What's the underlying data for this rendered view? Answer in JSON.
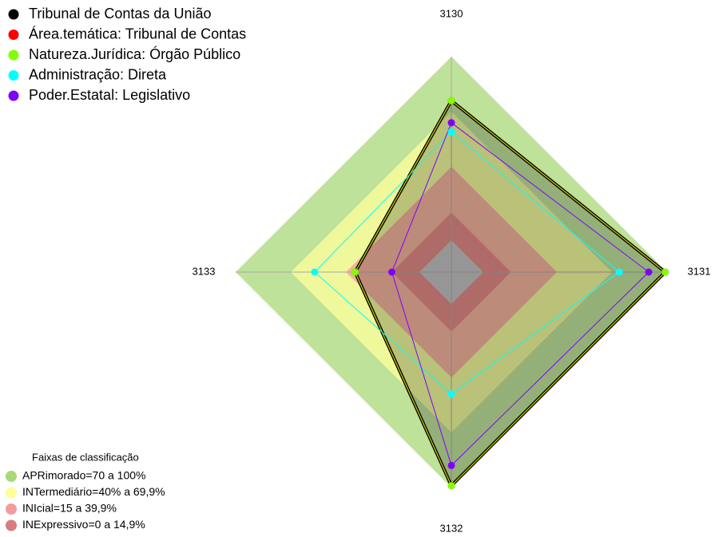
{
  "chart_data": {
    "type": "radar",
    "axes": [
      "3130",
      "3131",
      "3132",
      "3133"
    ],
    "rlim": [
      0,
      100
    ],
    "series": [
      {
        "name": "Tribunal de Contas da União",
        "color": "#000000",
        "values": [
          76,
          99,
          99,
          35
        ]
      },
      {
        "name": "Área.temática: Tribunal de Contas",
        "color": "#ff0000",
        "values": [
          76,
          99,
          99,
          35
        ]
      },
      {
        "name": "Natureza.Jurídica: Órgão Público",
        "color": "#80ff00",
        "values": [
          76,
          99,
          99,
          35
        ]
      },
      {
        "name": "Administração: Direta",
        "color": "#00ffff",
        "values": [
          59,
          74,
          49,
          57
        ]
      },
      {
        "name": "Poder.Estatal: Legislativo",
        "color": "#8000ff",
        "values": [
          64,
          90,
          88,
          15
        ]
      }
    ],
    "bands_title": "Faixas de classificação",
    "bands": [
      {
        "label": "APRimorado=70 a 100%",
        "color": "#a8d878",
        "from": 70
      },
      {
        "label": "INTermediário=40% a 69,9%",
        "color": "#ffff99",
        "from": 40
      },
      {
        "label": "INIcial=15 a 39,9%",
        "color": "#f49c9c",
        "from": 15
      },
      {
        "label": "INExpressivo=0 a 14,9%",
        "color": "#d87c7c",
        "from": 0
      }
    ]
  }
}
